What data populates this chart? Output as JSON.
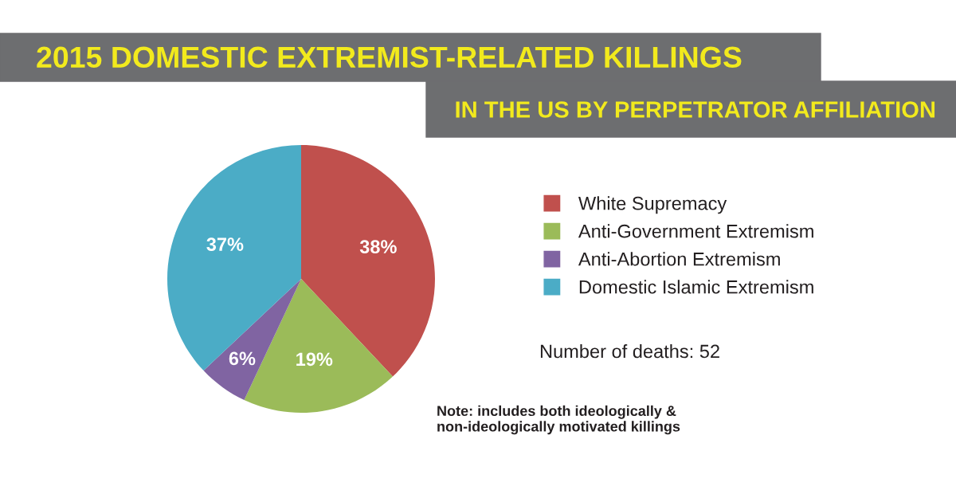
{
  "chart_data": {
    "type": "pie",
    "title": "2015 DOMESTIC EXTREMIST-RELATED KILLINGS",
    "subtitle": "IN THE US BY PERPETRATOR AFFILIATION",
    "categories": [
      "White Supremacy",
      "Anti-Government Extremism",
      "Anti-Abortion Extremism",
      "Domestic Islamic Extremism"
    ],
    "values": [
      38,
      19,
      6,
      37
    ],
    "colors": [
      "#c0504d",
      "#9bbb59",
      "#8064a2",
      "#4bacc6"
    ],
    "value_labels": [
      "38%",
      "19%",
      "6%",
      "37%"
    ],
    "legend": "right",
    "annotations": [
      "Number of deaths: 52",
      "Note: includes both ideologically &\nnon-ideologically motivated killings"
    ]
  }
}
